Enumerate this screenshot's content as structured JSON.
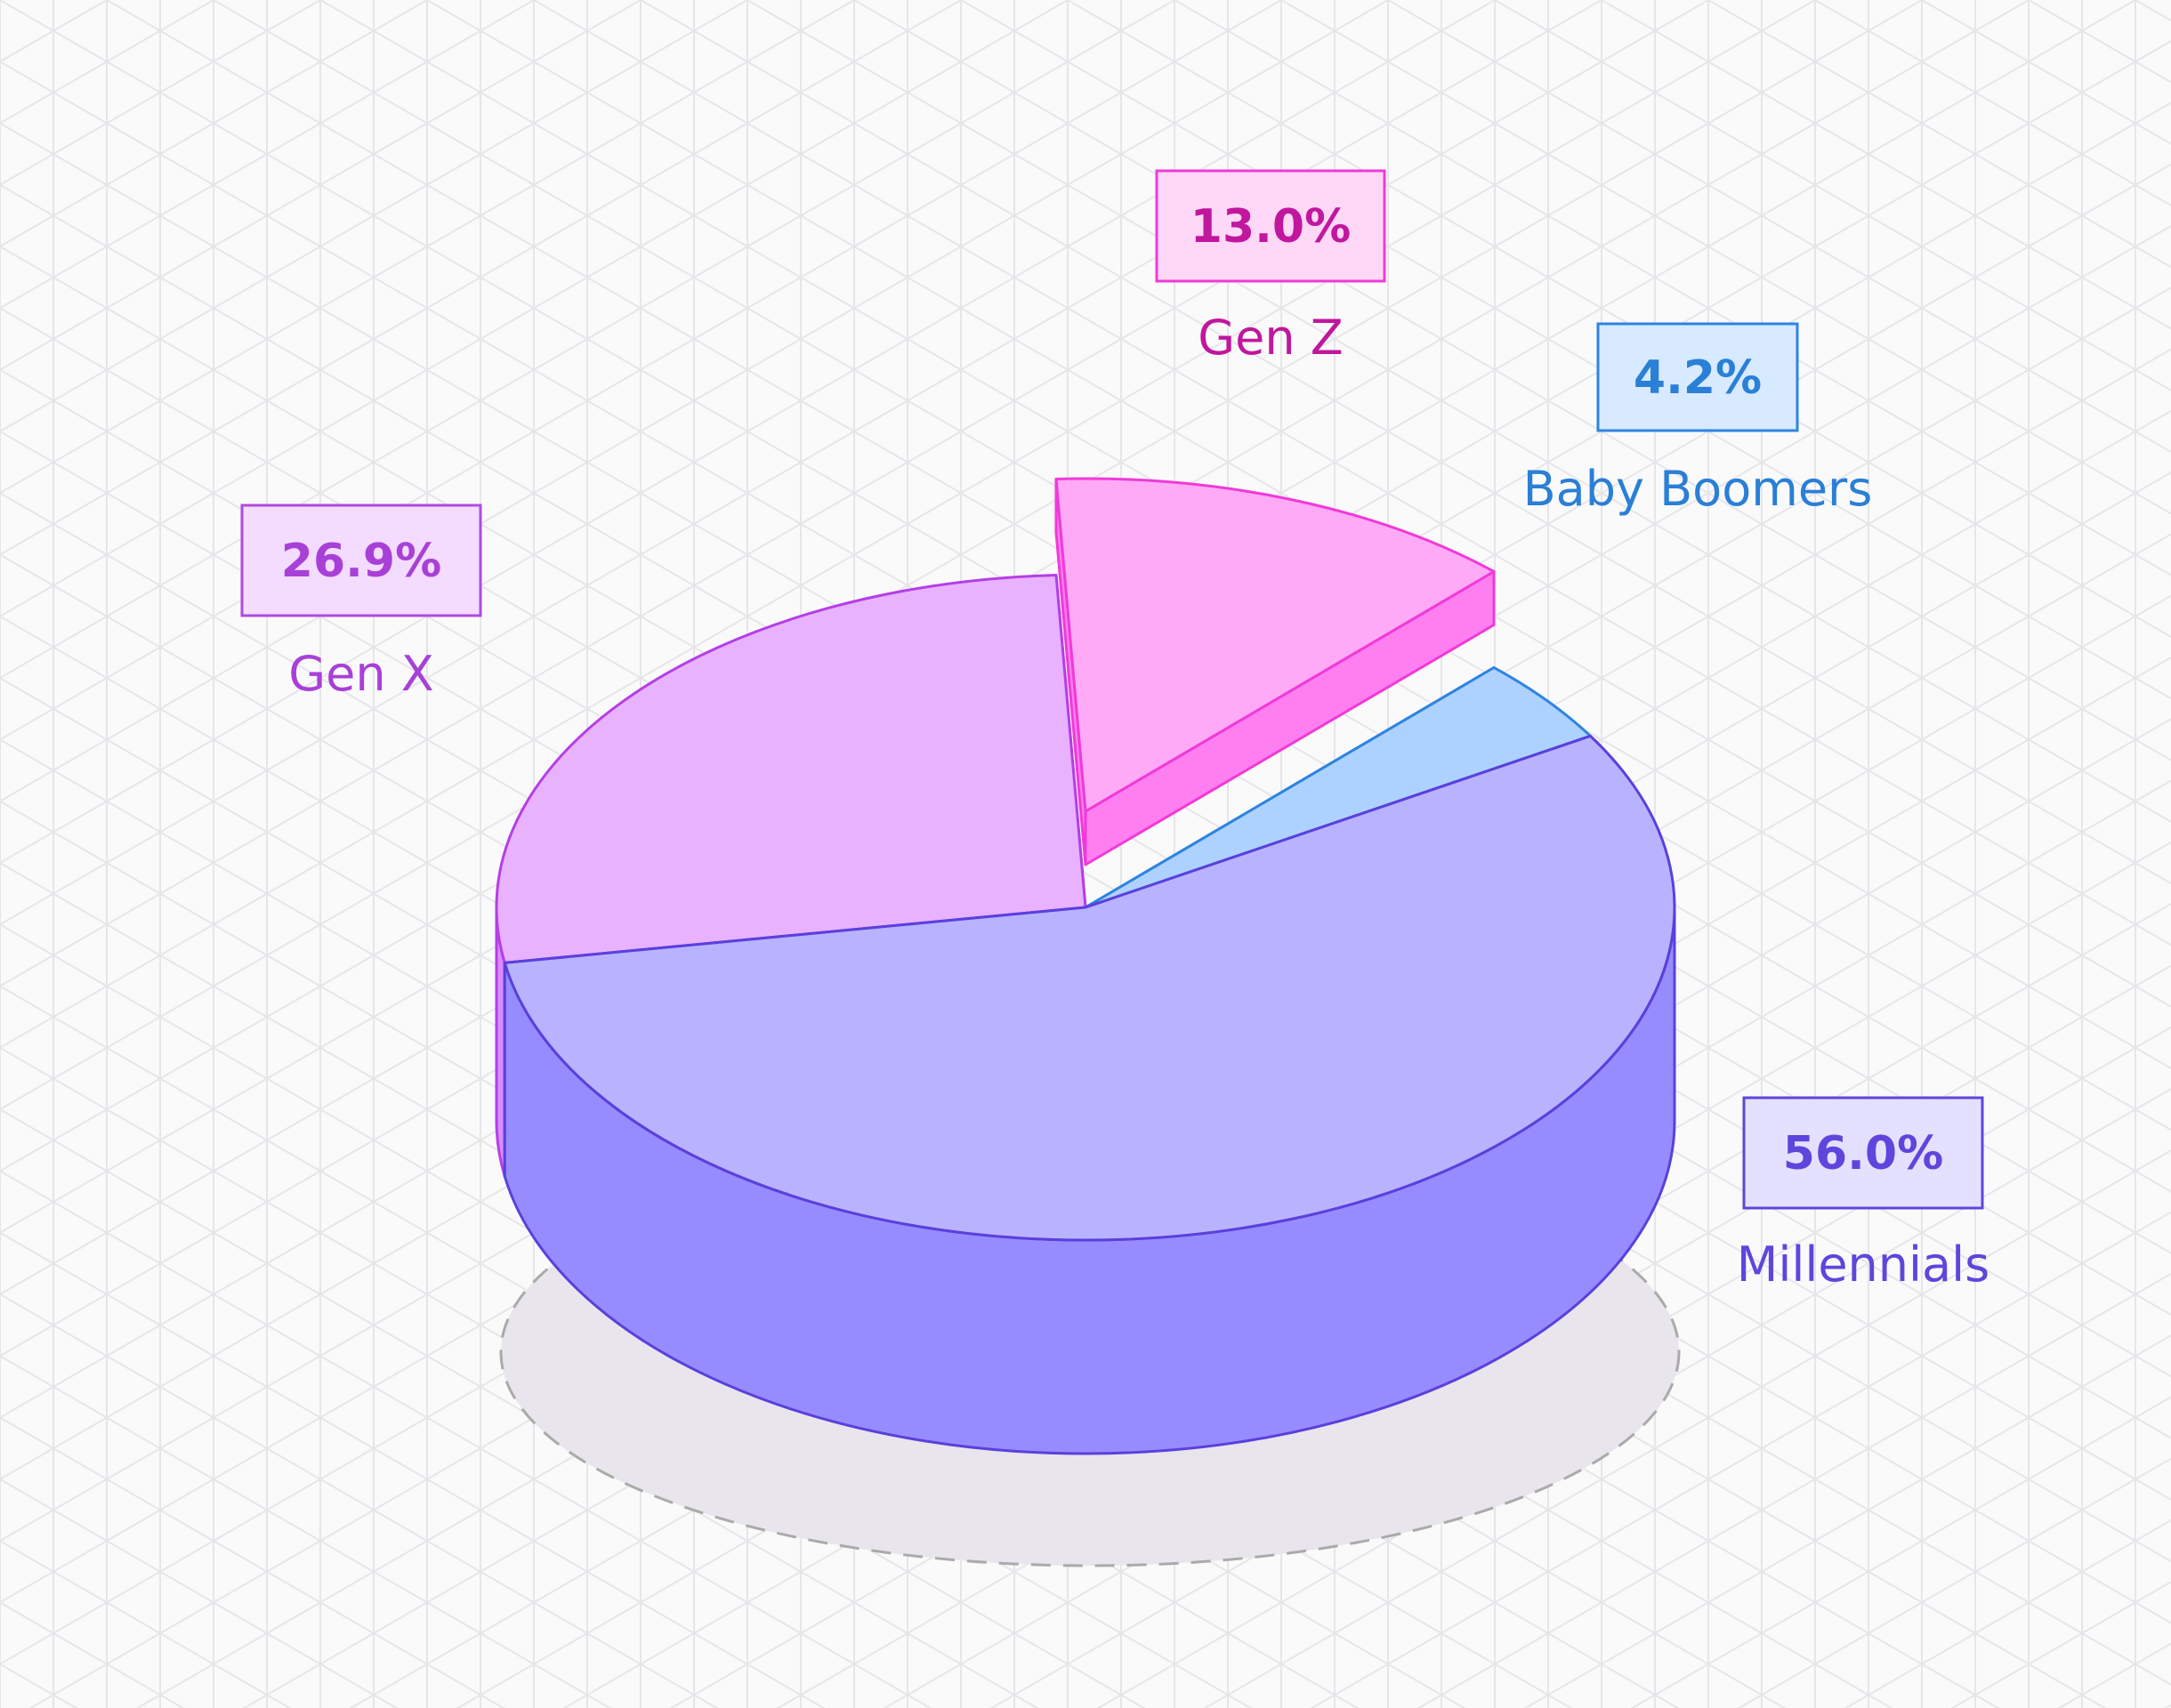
{
  "chart_data": {
    "type": "pie",
    "title": "",
    "categories": [
      "Millennials",
      "Gen X",
      "Gen Z",
      "Baby Boomers"
    ],
    "values": [
      56.0,
      26.9,
      13.0,
      4.2
    ],
    "value_labels": [
      "56.0%",
      "26.9%",
      "13.0%",
      "4.2%"
    ],
    "exploded": [
      "Gen Z"
    ],
    "style": "3d-isometric",
    "grid": "isometric background grid",
    "colors": {
      "Millennials": {
        "top": "#b9b3ff",
        "side": "#978cff",
        "stroke": "#5a40dc",
        "label": "#6045dc",
        "box_fill": "#e4e0ff",
        "box_stroke": "#6045dc"
      },
      "Gen X": {
        "top": "#e8b2ff",
        "side": "#d98cff",
        "stroke": "#b53ee6",
        "label": "#a840d8",
        "box_fill": "#f3dcff",
        "box_stroke": "#b04ae0"
      },
      "Gen Z": {
        "top": "#ffaaf6",
        "side": "#ff7ff0",
        "stroke": "#f03ad8",
        "label": "#c0179e",
        "box_fill": "#ffd8f8",
        "box_stroke": "#f03ad8"
      },
      "Baby Boomers": {
        "top": "#aed2ff",
        "side": "#7bbcff",
        "stroke": "#2e84e0",
        "label": "#2a7fd6",
        "box_fill": "#d8eaff",
        "box_stroke": "#2e84e0"
      }
    }
  }
}
